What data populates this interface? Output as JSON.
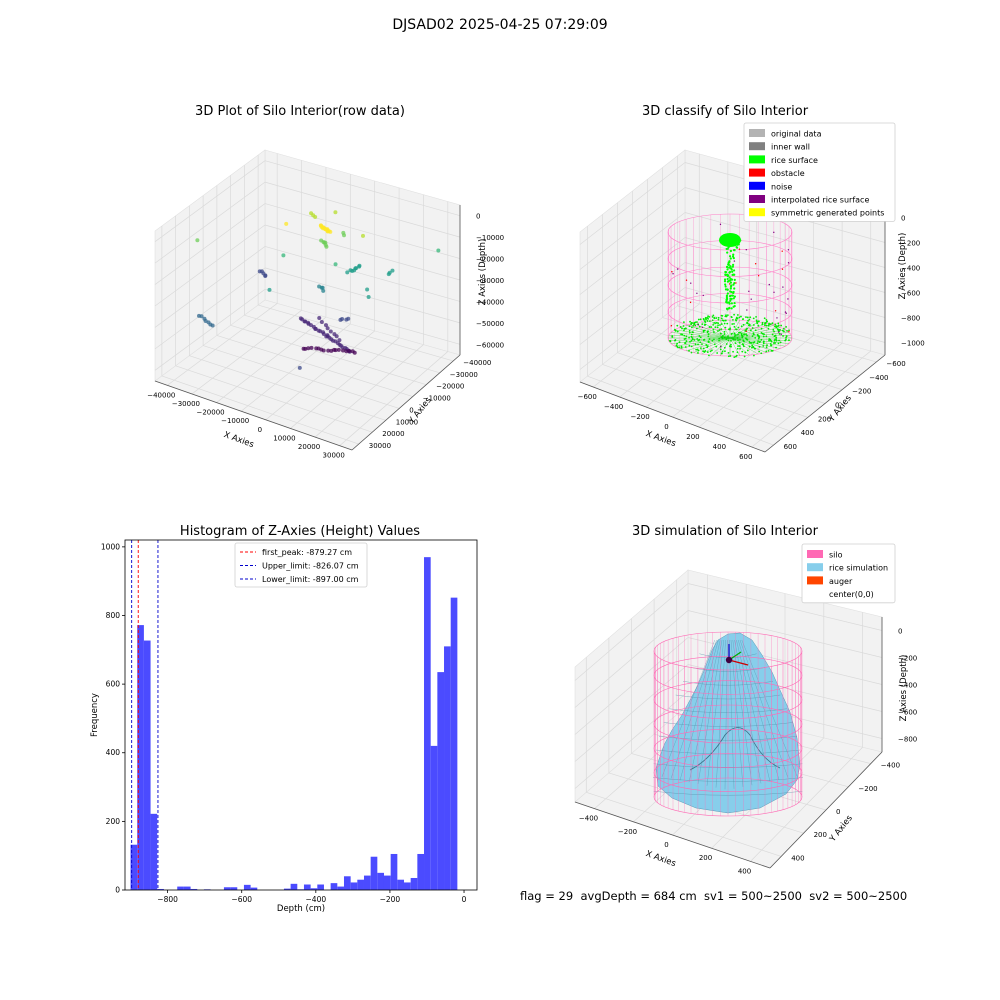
{
  "suptitle": "DJSAD02 2025-04-25 07:29:09",
  "footer": "flag = 29  avgDepth = 684 cm  sv1 = 500~2500  sv2 = 500~2500",
  "chart_data": [
    {
      "type": "scatter",
      "title": "3D Plot of Silo Interior(row data)",
      "xlabel": "X Axies",
      "ylabel": "Y Axies",
      "zlabel": "Z Axies (Depth)",
      "x_ticks": [
        "−40000",
        "−30000",
        "−20000",
        "−10000",
        "0",
        "10000",
        "20000",
        "30000"
      ],
      "y_ticks": [
        "−40000",
        "−30000",
        "−20000",
        "−10000",
        "0",
        "10000",
        "20000",
        "30000"
      ],
      "z_ticks": [
        "−60000",
        "−50000",
        "−40000",
        "−30000",
        "−20000",
        "−10000",
        "0"
      ],
      "colormap": "viridis"
    },
    {
      "type": "scatter",
      "title": "3D classify of Silo Interior",
      "xlabel": "X Axies",
      "ylabel": "Y Axies",
      "zlabel": "Z Axies (Depth)",
      "x_ticks": [
        "−600",
        "−400",
        "−200",
        "0",
        "200",
        "400",
        "600"
      ],
      "y_ticks": [
        "−600",
        "−400",
        "−200",
        "0",
        "200",
        "400",
        "600"
      ],
      "z_ticks": [
        "−1000",
        "−800",
        "−600",
        "−400",
        "−200",
        "0"
      ],
      "legend_position": "top-right",
      "legend": [
        {
          "label": "original data",
          "color": "#b3b3b3"
        },
        {
          "label": "inner wall",
          "color": "#808080"
        },
        {
          "label": "rice surface",
          "color": "#00ff00"
        },
        {
          "label": "obstacle",
          "color": "#ff0000"
        },
        {
          "label": "noise",
          "color": "#0000ff"
        },
        {
          "label": "interpolated rice surface",
          "color": "#800080"
        },
        {
          "label": "symmetric generated points",
          "color": "#ffff00"
        }
      ]
    },
    {
      "type": "bar",
      "title": "Histogram of Z-Axies (Height) Values",
      "xlabel": "Depth (cm)",
      "ylabel": "Frequency",
      "xlim": [
        -915,
        35
      ],
      "ylim": [
        0,
        1020
      ],
      "x_ticks": [
        -800,
        -600,
        -400,
        -200,
        0
      ],
      "y_ticks": [
        0,
        200,
        400,
        600,
        800,
        1000
      ],
      "x_tick_labels": [
        "−800",
        "−600",
        "−400",
        "−200",
        "0"
      ],
      "bar_color": "#4b4bff",
      "bin_edges": [
        -900,
        -882,
        -864,
        -846,
        -828,
        -810,
        -792,
        -774,
        -756,
        -738,
        -720,
        -702,
        -684,
        -666,
        -648,
        -630,
        -612,
        -594,
        -576,
        -558,
        -540,
        -522,
        -504,
        -486,
        -468,
        -450,
        -432,
        -414,
        -396,
        -378,
        -360,
        -342,
        -324,
        -306,
        -288,
        -270,
        -252,
        -234,
        -216,
        -198,
        -180,
        -162,
        -144,
        -126,
        -108,
        -90,
        -72,
        -54,
        -36,
        -18,
        0
      ],
      "values": [
        132,
        772,
        727,
        222,
        3,
        0,
        0,
        10,
        10,
        3,
        0,
        2,
        0,
        0,
        8,
        8,
        0,
        15,
        7,
        0,
        0,
        0,
        0,
        4,
        18,
        2,
        16,
        5,
        16,
        0,
        20,
        10,
        40,
        22,
        30,
        42,
        97,
        50,
        42,
        105,
        30,
        22,
        35,
        105,
        970,
        420,
        635,
        710,
        852,
        0
      ],
      "lines": [
        {
          "label": "first_peak: -879.27 cm",
          "x": -879.27,
          "color": "#ff0000"
        },
        {
          "label": "Upper_limit: -826.07 cm",
          "x": -826.07,
          "color": "#0000cc"
        },
        {
          "label": "Lower_limit: -897.00 cm",
          "x": -897.0,
          "color": "#0000cc"
        }
      ],
      "legend_position": "top-center"
    },
    {
      "type": "area",
      "title": "3D simulation of Silo Interior",
      "xlabel": "X Axies",
      "ylabel": "Y Axies",
      "zlabel": "Z Axies (Depth)",
      "x_ticks": [
        "−400",
        "−200",
        "0",
        "200",
        "400"
      ],
      "y_ticks": [
        "−400",
        "−200",
        "0",
        "200",
        "400"
      ],
      "z_ticks": [
        "−800",
        "−600",
        "−400",
        "−200",
        "0"
      ],
      "legend_position": "top-right",
      "legend": [
        {
          "label": "silo",
          "color": "#ff69b4"
        },
        {
          "label": "rice simulation",
          "color": "#87ceeb"
        },
        {
          "label": "auger",
          "color": "#ff4500"
        },
        {
          "label": "center(0,0)",
          "color": ""
        }
      ]
    }
  ]
}
